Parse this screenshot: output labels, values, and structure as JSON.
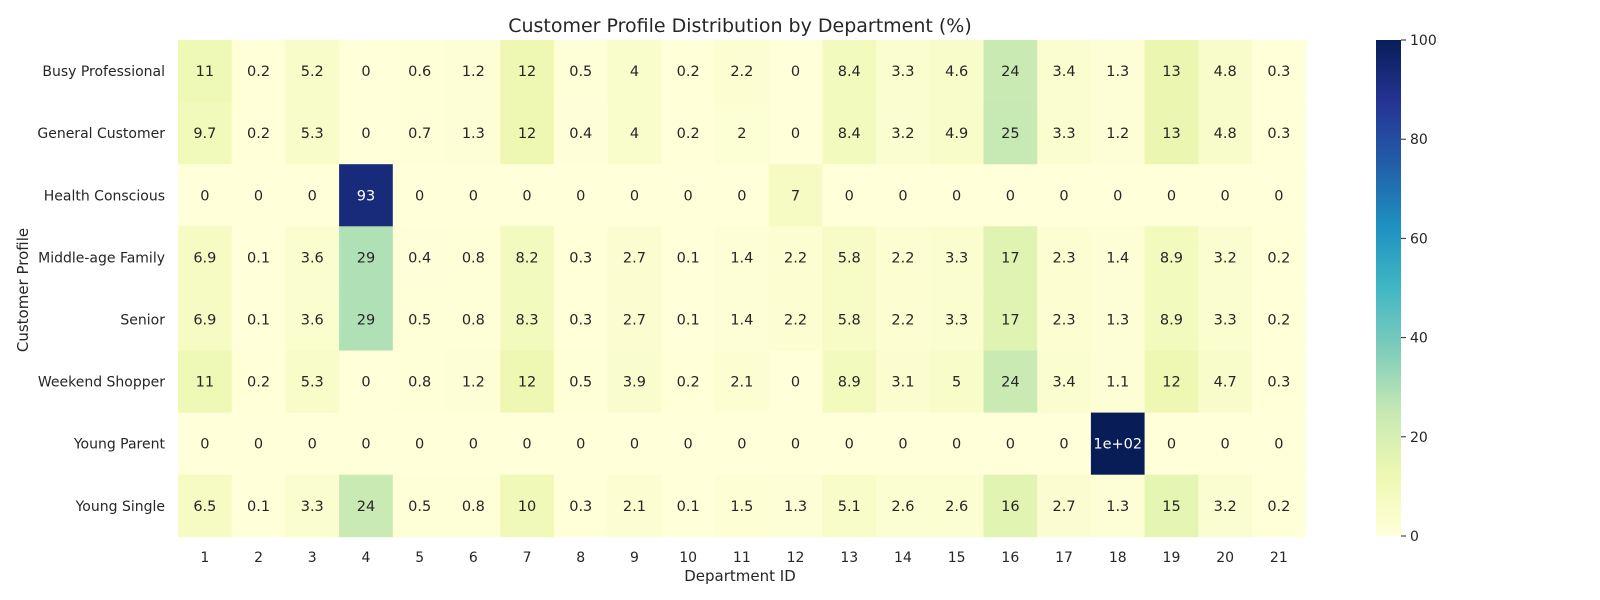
{
  "chart_data": {
    "type": "heatmap",
    "title": "Customer Profile Distribution by Department (%)",
    "xlabel": "Department ID",
    "ylabel": "Customer Profile",
    "x_categories": [
      "1",
      "2",
      "3",
      "4",
      "5",
      "6",
      "7",
      "8",
      "9",
      "10",
      "11",
      "12",
      "13",
      "14",
      "15",
      "16",
      "17",
      "18",
      "19",
      "20",
      "21"
    ],
    "y_categories": [
      "Busy Professional",
      "General Customer",
      "Health Conscious",
      "Middle-age Family",
      "Senior",
      "Weekend Shopper",
      "Young Parent",
      "Young Single"
    ],
    "values": [
      [
        11,
        0.2,
        5.2,
        0,
        0.6,
        1.2,
        12,
        0.5,
        4,
        0.2,
        2.2,
        0,
        8.4,
        3.3,
        4.6,
        24,
        3.4,
        1.3,
        13,
        4.8,
        0.3
      ],
      [
        9.7,
        0.2,
        5.3,
        0,
        0.7,
        1.3,
        12,
        0.4,
        4,
        0.2,
        2,
        0,
        8.4,
        3.2,
        4.9,
        25,
        3.3,
        1.2,
        13,
        4.8,
        0.3
      ],
      [
        0,
        0,
        0,
        93,
        0,
        0,
        0,
        0,
        0,
        0,
        0,
        7,
        0,
        0,
        0,
        0,
        0,
        0,
        0,
        0,
        0
      ],
      [
        6.9,
        0.1,
        3.6,
        29,
        0.4,
        0.8,
        8.2,
        0.3,
        2.7,
        0.1,
        1.4,
        2.2,
        5.8,
        2.2,
        3.3,
        17,
        2.3,
        1.4,
        8.9,
        3.2,
        0.2
      ],
      [
        6.9,
        0.1,
        3.6,
        29,
        0.5,
        0.8,
        8.3,
        0.3,
        2.7,
        0.1,
        1.4,
        2.2,
        5.8,
        2.2,
        3.3,
        17,
        2.3,
        1.3,
        8.9,
        3.3,
        0.2
      ],
      [
        11,
        0.2,
        5.3,
        0,
        0.8,
        1.2,
        12,
        0.5,
        3.9,
        0.2,
        2.1,
        0,
        8.9,
        3.1,
        5,
        24,
        3.4,
        1.1,
        12,
        4.7,
        0.3
      ],
      [
        0,
        0,
        0,
        0,
        0,
        0,
        0,
        0,
        0,
        0,
        0,
        0,
        0,
        0,
        0,
        0,
        0,
        100,
        0,
        0,
        0
      ],
      [
        6.5,
        0.1,
        3.3,
        24,
        0.5,
        0.8,
        10,
        0.3,
        2.1,
        0.1,
        1.5,
        1.3,
        5.1,
        2.6,
        2.6,
        16,
        2.7,
        1.3,
        15,
        3.2,
        0.2
      ]
    ],
    "labels": [
      [
        "11",
        "0.2",
        "5.2",
        "0",
        "0.6",
        "1.2",
        "12",
        "0.5",
        "4",
        "0.2",
        "2.2",
        "0",
        "8.4",
        "3.3",
        "4.6",
        "24",
        "3.4",
        "1.3",
        "13",
        "4.8",
        "0.3"
      ],
      [
        "9.7",
        "0.2",
        "5.3",
        "0",
        "0.7",
        "1.3",
        "12",
        "0.4",
        "4",
        "0.2",
        "2",
        "0",
        "8.4",
        "3.2",
        "4.9",
        "25",
        "3.3",
        "1.2",
        "13",
        "4.8",
        "0.3"
      ],
      [
        "0",
        "0",
        "0",
        "93",
        "0",
        "0",
        "0",
        "0",
        "0",
        "0",
        "0",
        "7",
        "0",
        "0",
        "0",
        "0",
        "0",
        "0",
        "0",
        "0",
        "0"
      ],
      [
        "6.9",
        "0.1",
        "3.6",
        "29",
        "0.4",
        "0.8",
        "8.2",
        "0.3",
        "2.7",
        "0.1",
        "1.4",
        "2.2",
        "5.8",
        "2.2",
        "3.3",
        "17",
        "2.3",
        "1.4",
        "8.9",
        "3.2",
        "0.2"
      ],
      [
        "6.9",
        "0.1",
        "3.6",
        "29",
        "0.5",
        "0.8",
        "8.3",
        "0.3",
        "2.7",
        "0.1",
        "1.4",
        "2.2",
        "5.8",
        "2.2",
        "3.3",
        "17",
        "2.3",
        "1.3",
        "8.9",
        "3.3",
        "0.2"
      ],
      [
        "11",
        "0.2",
        "5.3",
        "0",
        "0.8",
        "1.2",
        "12",
        "0.5",
        "3.9",
        "0.2",
        "2.1",
        "0",
        "8.9",
        "3.1",
        "5",
        "24",
        "3.4",
        "1.1",
        "12",
        "4.7",
        "0.3"
      ],
      [
        "0",
        "0",
        "0",
        "0",
        "0",
        "0",
        "0",
        "0",
        "0",
        "0",
        "0",
        "0",
        "0",
        "0",
        "0",
        "0",
        "0",
        "1e+02",
        "0",
        "0",
        "0"
      ],
      [
        "6.5",
        "0.1",
        "3.3",
        "24",
        "0.5",
        "0.8",
        "10",
        "0.3",
        "2.1",
        "0.1",
        "1.5",
        "1.3",
        "5.1",
        "2.6",
        "2.6",
        "16",
        "2.7",
        "1.3",
        "15",
        "3.2",
        "0.2"
      ]
    ],
    "colorbar": {
      "min": 0,
      "max": 100,
      "ticks": [
        "0",
        "20",
        "40",
        "60",
        "80",
        "100"
      ],
      "colormap": "YlGnBu",
      "colors": [
        "#ffffd9",
        "#edf8b1",
        "#c7e9b4",
        "#7fcdbb",
        "#41b6c4",
        "#1d91c0",
        "#225ea8",
        "#253494",
        "#081d58"
      ]
    }
  }
}
